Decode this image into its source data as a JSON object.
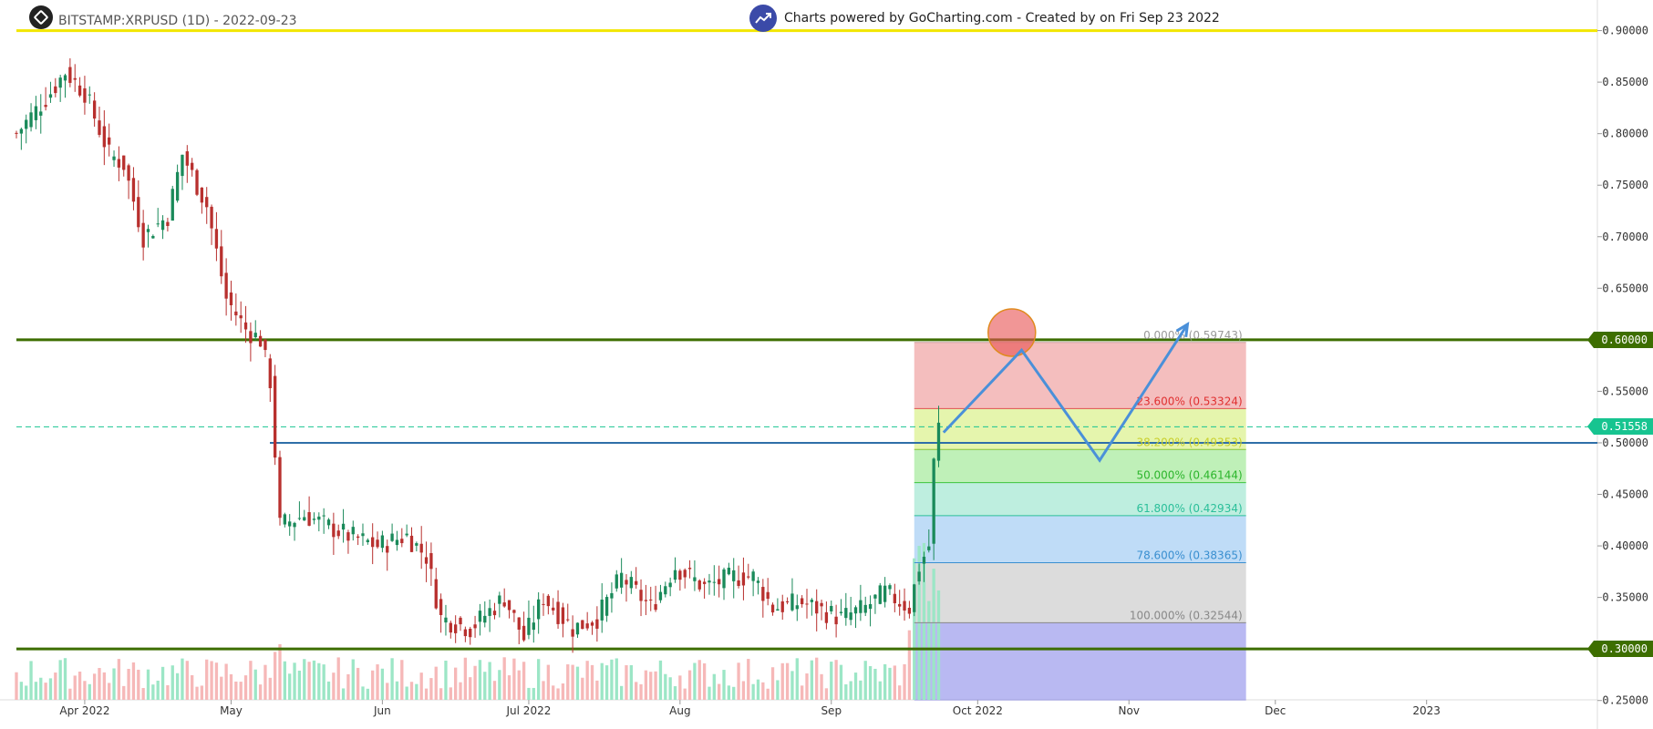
{
  "header": {
    "symbol_label": "BITSTAMP:XRPUSD (1D) - 2022-09-23",
    "credit_label": "Charts powered by GoCharting.com - Created by  on Fri Sep 23 2022",
    "logo_icon": "gocharting-logo-icon",
    "badge_icon": "trend-chart-icon"
  },
  "price_tags": [
    {
      "label": "0.60000",
      "value": 0.6,
      "color": "#3d6e00"
    },
    {
      "label": "0.51558",
      "value": 0.51558,
      "color": "#17c490"
    },
    {
      "label": "0.30000",
      "value": 0.3,
      "color": "#3d6e00"
    }
  ],
  "chart_data": {
    "type": "candlestick",
    "title": "BITSTAMP:XRPUSD (1D) - 2022-09-23",
    "x_range": [
      "2022-03-18",
      "2023-02-05"
    ],
    "x_tick_labels": [
      {
        "label": "Apr 2022",
        "date": "2022-04-01"
      },
      {
        "label": "May",
        "date": "2022-05-01"
      },
      {
        "label": "Jun",
        "date": "2022-06-01"
      },
      {
        "label": "Jul 2022",
        "date": "2022-07-01"
      },
      {
        "label": "Aug",
        "date": "2022-08-01"
      },
      {
        "label": "Sep",
        "date": "2022-09-01"
      },
      {
        "label": "Oct 2022",
        "date": "2022-10-01"
      },
      {
        "label": "Nov",
        "date": "2022-11-01"
      },
      {
        "label": "Dec",
        "date": "2022-12-01"
      },
      {
        "label": "2023",
        "date": "2023-01-01"
      }
    ],
    "y_range": [
      0.25,
      0.91
    ],
    "y_ticks": [
      "0.25000",
      "0.30000",
      "0.35000",
      "0.40000",
      "0.45000",
      "0.50000",
      "0.55000",
      "0.60000",
      "0.65000",
      "0.70000",
      "0.75000",
      "0.80000",
      "0.85000",
      "0.90000"
    ],
    "colors": {
      "up": "#1a8a5a",
      "down": "#b8302e",
      "vol_up": "#9ce6c6",
      "vol_down": "#f6b8b8"
    },
    "price_waypoints": [
      {
        "date": "2022-03-18",
        "price": 0.8
      },
      {
        "date": "2022-03-25",
        "price": 0.84
      },
      {
        "date": "2022-03-28",
        "price": 0.86
      },
      {
        "date": "2022-04-01",
        "price": 0.84
      },
      {
        "date": "2022-04-06",
        "price": 0.78
      },
      {
        "date": "2022-04-09",
        "price": 0.77
      },
      {
        "date": "2022-04-13",
        "price": 0.7
      },
      {
        "date": "2022-04-18",
        "price": 0.72
      },
      {
        "date": "2022-04-21",
        "price": 0.78
      },
      {
        "date": "2022-04-26",
        "price": 0.73
      },
      {
        "date": "2022-04-30",
        "price": 0.64
      },
      {
        "date": "2022-05-04",
        "price": 0.61
      },
      {
        "date": "2022-05-07",
        "price": 0.6
      },
      {
        "date": "2022-05-09",
        "price": 0.56
      },
      {
        "date": "2022-05-11",
        "price": 0.42
      },
      {
        "date": "2022-05-16",
        "price": 0.43
      },
      {
        "date": "2022-05-25",
        "price": 0.41
      },
      {
        "date": "2022-05-31",
        "price": 0.4
      },
      {
        "date": "2022-06-06",
        "price": 0.41
      },
      {
        "date": "2022-06-10",
        "price": 0.39
      },
      {
        "date": "2022-06-13",
        "price": 0.33
      },
      {
        "date": "2022-06-19",
        "price": 0.32
      },
      {
        "date": "2022-06-26",
        "price": 0.35
      },
      {
        "date": "2022-06-30",
        "price": 0.31
      },
      {
        "date": "2022-07-04",
        "price": 0.35
      },
      {
        "date": "2022-07-10",
        "price": 0.32
      },
      {
        "date": "2022-07-15",
        "price": 0.33
      },
      {
        "date": "2022-07-20",
        "price": 0.37
      },
      {
        "date": "2022-07-26",
        "price": 0.34
      },
      {
        "date": "2022-07-31",
        "price": 0.38
      },
      {
        "date": "2022-08-06",
        "price": 0.36
      },
      {
        "date": "2022-08-12",
        "price": 0.37
      },
      {
        "date": "2022-08-16",
        "price": 0.37
      },
      {
        "date": "2022-08-20",
        "price": 0.34
      },
      {
        "date": "2022-08-26",
        "price": 0.345
      },
      {
        "date": "2022-09-03",
        "price": 0.33
      },
      {
        "date": "2022-09-08",
        "price": 0.34
      },
      {
        "date": "2022-09-12",
        "price": 0.355
      },
      {
        "date": "2022-09-17",
        "price": 0.34
      },
      {
        "date": "2022-09-19",
        "price": 0.38
      },
      {
        "date": "2022-09-21",
        "price": 0.4
      },
      {
        "date": "2022-09-22",
        "price": 0.48
      },
      {
        "date": "2022-09-23",
        "price": 0.51558
      }
    ],
    "horizontal_levels": [
      {
        "value": 0.9,
        "color": "#f2e600"
      },
      {
        "value": 0.6,
        "color": "#3d6e00"
      },
      {
        "value": 0.3,
        "color": "#3d6e00"
      },
      {
        "value": 0.5,
        "color": "#2f6fa8"
      },
      {
        "value": 0.51558,
        "color": "#17c490",
        "dashed": true
      }
    ],
    "fibonacci": {
      "start_date": "2022-09-18",
      "end_date": "2022-11-25",
      "levels": [
        {
          "label": "0.000% (0.59743)",
          "value": 0.59743,
          "text_color": "#999999",
          "line": "#c8a0a0",
          "fill": "rgba(220,40,40,0.30)"
        },
        {
          "label": "23.600% (0.53324)",
          "value": 0.53324,
          "text_color": "#e03030",
          "line": "#e05050",
          "fill": "rgba(190,230,50,0.40)"
        },
        {
          "label": "38.200% (0.49353)",
          "value": 0.49353,
          "text_color": "#c9cf2a",
          "line": "#8ac43a",
          "fill": "rgba(60,210,40,0.33)"
        },
        {
          "label": "50.000% (0.46144)",
          "value": 0.46144,
          "text_color": "#2cb52c",
          "line": "#3cc43c",
          "fill": "rgba(40,200,150,0.30)"
        },
        {
          "label": "61.800% (0.42934)",
          "value": 0.42934,
          "text_color": "#2bbf9a",
          "line": "#2bbf9a",
          "fill": "rgba(60,150,230,0.33)"
        },
        {
          "label": "78.600% (0.38365)",
          "value": 0.38365,
          "text_color": "#3a8fd0",
          "line": "#3a8fd0",
          "fill": "rgba(150,150,150,0.33)"
        },
        {
          "label": "100.000% (0.32544)",
          "value": 0.32544,
          "text_color": "#888888",
          "line": "#888888",
          "fill": "rgba(70,70,220,0.38)"
        }
      ],
      "bottom_value": 0.25
    },
    "projection_path": [
      {
        "date": "2022-09-24",
        "price": 0.51
      },
      {
        "date": "2022-10-10",
        "price": 0.59
      },
      {
        "date": "2022-10-26",
        "price": 0.483
      },
      {
        "date": "2022-11-13",
        "price": 0.615
      }
    ],
    "target_circle": {
      "date": "2022-10-08",
      "price": 0.607,
      "fill": "rgba(232,80,80,0.6)",
      "stroke": "#e08a1e"
    }
  }
}
